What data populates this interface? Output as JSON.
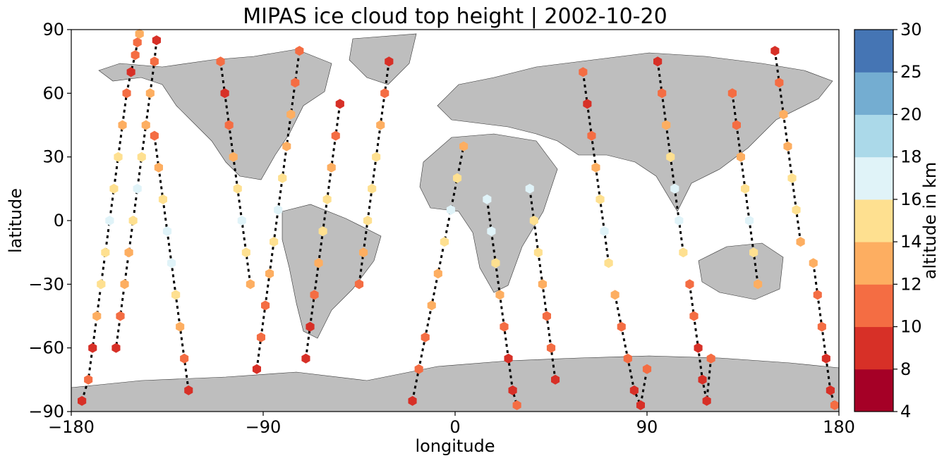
{
  "chart_data": {
    "type": "scatter",
    "title": "MIPAS ice cloud top height | 2002-10-20",
    "xlabel": "longitude",
    "ylabel": "latitude",
    "xlim": [
      -180,
      180
    ],
    "ylim": [
      -90,
      90
    ],
    "xticks": [
      -180,
      -90,
      0,
      90,
      180
    ],
    "xtick_labels": [
      "−180",
      "−90",
      "0",
      "90",
      "180"
    ],
    "yticks": [
      -90,
      -60,
      -30,
      0,
      30,
      60,
      90
    ],
    "ytick_labels": [
      "−90",
      "−60",
      "−30",
      "0",
      "30",
      "60",
      "90"
    ],
    "grid": false,
    "land_color": "#bebebe",
    "colorbar": {
      "label": "altitude in km",
      "boundaries": [
        4,
        8,
        10,
        12,
        14,
        16,
        18,
        20,
        25,
        30
      ],
      "tick_labels": [
        "4",
        "8",
        "10",
        "12",
        "14",
        "16",
        "18",
        "20",
        "25",
        "30"
      ],
      "colors": [
        "#a50026",
        "#d73027",
        "#f46d43",
        "#fdae61",
        "#fee090",
        "#e0f3f8",
        "#abd9e9",
        "#74add1",
        "#4575b4"
      ]
    },
    "tracks": [
      {
        "x": [
          -175,
          -172,
          -170,
          -168,
          -166,
          -164,
          -162,
          -160,
          -158,
          -156,
          -154,
          -152,
          -150,
          -149,
          -148
        ],
        "y": [
          -85,
          -75,
          -60,
          -45,
          -30,
          -15,
          0,
          15,
          30,
          45,
          60,
          70,
          78,
          84,
          88
        ],
        "z": [
          8,
          10,
          9,
          12,
          14,
          15,
          16,
          15,
          14,
          12,
          10,
          9,
          10,
          11,
          12
        ]
      },
      {
        "x": [
          -140,
          -141,
          -143,
          -145,
          -147,
          -149,
          -151,
          -153,
          -155,
          -157,
          -159
        ],
        "y": [
          85,
          75,
          60,
          45,
          30,
          15,
          0,
          -15,
          -30,
          -45,
          -60
        ],
        "z": [
          9,
          11,
          12,
          13,
          15,
          16,
          15,
          13,
          12,
          10,
          9
        ]
      },
      {
        "x": [
          -125,
          -127,
          -129,
          -131,
          -133,
          -135,
          -137,
          -139,
          -141
        ],
        "y": [
          -80,
          -65,
          -50,
          -35,
          -20,
          -5,
          10,
          25,
          40
        ],
        "z": [
          9,
          10,
          12,
          14,
          16,
          17,
          15,
          13,
          11
        ]
      },
      {
        "x": [
          -110,
          -108,
          -106,
          -104,
          -102,
          -100,
          -98,
          -96
        ],
        "y": [
          75,
          60,
          45,
          30,
          15,
          0,
          -15,
          -30
        ],
        "z": [
          10,
          9,
          11,
          13,
          15,
          16,
          14,
          12
        ]
      },
      {
        "x": [
          -93,
          -91,
          -89,
          -87,
          -85,
          -83,
          -81,
          -79,
          -77,
          -75,
          -73
        ],
        "y": [
          -70,
          -55,
          -40,
          -25,
          -10,
          5,
          20,
          35,
          50,
          65,
          80
        ],
        "z": [
          9,
          10,
          11,
          13,
          15,
          16,
          15,
          13,
          12,
          10,
          11
        ]
      },
      {
        "x": [
          -70,
          -68,
          -66,
          -64,
          -62,
          -60,
          -58,
          -56,
          -54
        ],
        "y": [
          -65,
          -50,
          -35,
          -20,
          -5,
          10,
          25,
          40,
          55
        ],
        "z": [
          8,
          9,
          10,
          12,
          14,
          15,
          13,
          11,
          9
        ]
      },
      {
        "x": [
          -45,
          -43,
          -41,
          -39,
          -37,
          -35,
          -33,
          -31
        ],
        "y": [
          -30,
          -15,
          0,
          15,
          30,
          45,
          60,
          75
        ],
        "z": [
          11,
          12,
          14,
          15,
          14,
          12,
          10,
          9
        ]
      },
      {
        "x": [
          -20,
          -17,
          -14,
          -11,
          -8,
          -5,
          -2,
          1,
          4
        ],
        "y": [
          -85,
          -70,
          -55,
          -40,
          -25,
          -10,
          5,
          20,
          35
        ],
        "z": [
          9,
          10,
          11,
          12,
          13,
          15,
          16,
          14,
          12
        ]
      },
      {
        "x": [
          15,
          17,
          19,
          21,
          23,
          25,
          27,
          29
        ],
        "y": [
          10,
          -5,
          -20,
          -35,
          -50,
          -65,
          -80,
          -87
        ],
        "z": [
          17,
          16,
          15,
          12,
          10,
          9,
          8,
          10
        ]
      },
      {
        "x": [
          35,
          37,
          39,
          41,
          43,
          45,
          47
        ],
        "y": [
          15,
          0,
          -15,
          -30,
          -45,
          -60,
          -75
        ],
        "z": [
          16,
          15,
          14,
          12,
          11,
          10,
          9
        ]
      },
      {
        "x": [
          60,
          62,
          64,
          66,
          68,
          70,
          72
        ],
        "y": [
          70,
          55,
          40,
          25,
          10,
          -5,
          -20
        ],
        "z": [
          10,
          9,
          11,
          13,
          15,
          16,
          14
        ]
      },
      {
        "x": [
          75,
          78,
          81,
          84,
          87,
          90
        ],
        "y": [
          -35,
          -50,
          -65,
          -80,
          -87,
          -70
        ],
        "z": [
          12,
          11,
          10,
          9,
          8,
          10
        ]
      },
      {
        "x": [
          95,
          97,
          99,
          101,
          103,
          105,
          107
        ],
        "y": [
          75,
          60,
          45,
          30,
          15,
          0,
          -15
        ],
        "z": [
          9,
          10,
          12,
          14,
          16,
          17,
          15
        ]
      },
      {
        "x": [
          110,
          112,
          114,
          116,
          118,
          120
        ],
        "y": [
          -30,
          -45,
          -60,
          -75,
          -85,
          -65
        ],
        "z": [
          11,
          10,
          9,
          8,
          9,
          10
        ]
      },
      {
        "x": [
          130,
          132,
          134,
          136,
          138,
          140,
          142
        ],
        "y": [
          60,
          45,
          30,
          15,
          0,
          -15,
          -30
        ],
        "z": [
          10,
          11,
          13,
          15,
          16,
          15,
          13
        ]
      },
      {
        "x": [
          150,
          152,
          154,
          156,
          158,
          160,
          162
        ],
        "y": [
          80,
          65,
          50,
          35,
          20,
          5,
          -10
        ],
        "z": [
          9,
          10,
          12,
          13,
          15,
          14,
          12
        ]
      },
      {
        "x": [
          168,
          170,
          172,
          174,
          176,
          178
        ],
        "y": [
          -20,
          -35,
          -50,
          -65,
          -80,
          -87
        ],
        "z": [
          13,
          11,
          10,
          9,
          8,
          11
        ]
      }
    ]
  }
}
